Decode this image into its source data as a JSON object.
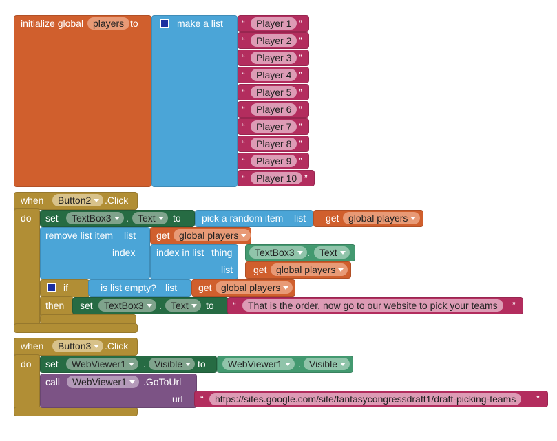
{
  "quote_open": "“",
  "quote_close": "”",
  "init": {
    "keyword": "initialize global",
    "name": "players",
    "to": "to",
    "make_list": "make a list",
    "items": [
      "Player 1",
      "Player 2",
      "Player 3",
      "Player 4",
      "Player 5",
      "Player 6",
      "Player 7",
      "Player 8",
      "Player 9",
      "Player 10"
    ]
  },
  "button2": {
    "when": "when",
    "component": "Button2",
    "event": ".Click",
    "do": "do",
    "set": "set",
    "textbox": "TextBox3",
    "dot": ".",
    "property": "Text",
    "to": "to",
    "pick": "pick a random item",
    "list": "list",
    "get": "get",
    "global_var": "global players",
    "remove": "remove list item",
    "index": "index",
    "index_in_list": "index in list",
    "thing": "thing",
    "if": "if",
    "is_list_empty": "is list empty?",
    "then": "then",
    "text": "That is the order, now go to our website to pick your teams"
  },
  "button3": {
    "when": "when",
    "component": "Button3",
    "event": ".Click",
    "do": "do",
    "set": "set",
    "webviewer": "WebViewer1",
    "dot": ".",
    "property": "Visible",
    "to": "to",
    "call": "call",
    "method": ".GoToUrl",
    "url_label": "url",
    "url": "https://sites.google.com/site/fantasycongressdraft1/draft-picking-teams"
  }
}
